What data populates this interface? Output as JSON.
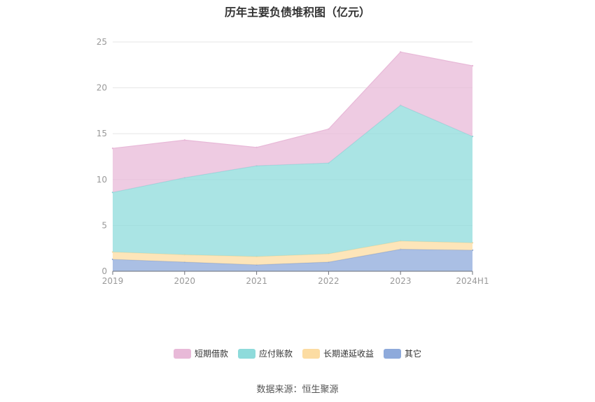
{
  "chart_data": {
    "type": "area",
    "stacked": true,
    "title": "历年主要负债堆积图（亿元）",
    "categories": [
      "2019",
      "2020",
      "2021",
      "2022",
      "2023",
      "2024H1"
    ],
    "ylim": [
      0,
      25
    ],
    "yticks": [
      0,
      5,
      10,
      15,
      20,
      25
    ],
    "grid": true,
    "legend_position": "bottom",
    "series": [
      {
        "name": "其它",
        "color": "#8eaadb",
        "values": [
          1.3,
          1.0,
          0.7,
          1.0,
          2.4,
          2.3
        ]
      },
      {
        "name": "长期递延收益",
        "color": "#fcdca2",
        "values": [
          0.8,
          0.8,
          0.9,
          0.9,
          0.9,
          0.8
        ]
      },
      {
        "name": "应付账款",
        "color": "#8edbdb",
        "values": [
          6.5,
          8.4,
          9.9,
          9.9,
          14.8,
          11.6
        ]
      },
      {
        "name": "短期借款",
        "color": "#e8b9d8",
        "values": [
          4.8,
          4.1,
          2.0,
          3.7,
          5.8,
          7.7
        ]
      }
    ],
    "legend_order": [
      "短期借款",
      "应付账款",
      "长期递延收益",
      "其它"
    ]
  },
  "footer": {
    "source": "数据来源：恒生聚源"
  }
}
